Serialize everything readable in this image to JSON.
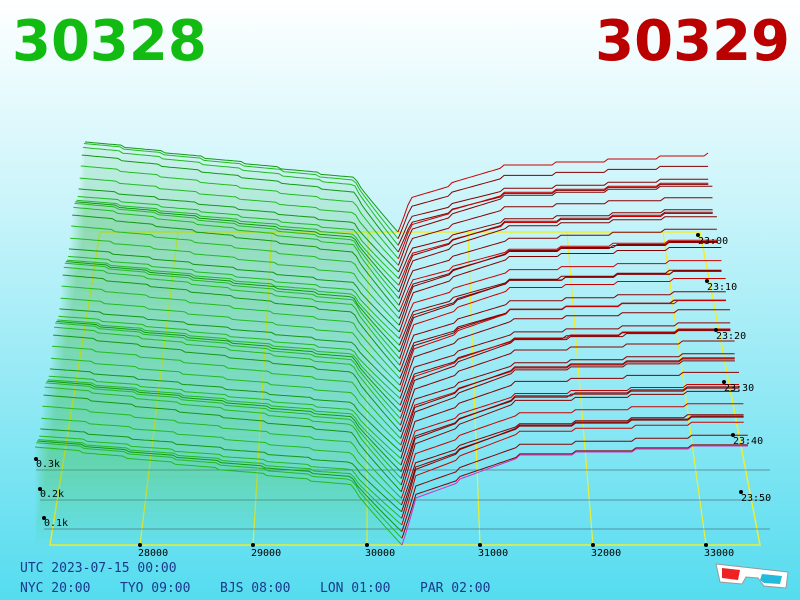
{
  "header": {
    "bid": "30328",
    "ask": "30329"
  },
  "price_axis": [
    "28000",
    "29000",
    "30000",
    "31000",
    "32000",
    "33000"
  ],
  "depth_axis": [
    "0.3k",
    "0.2k",
    "0.1k"
  ],
  "time_axis": [
    "23:00",
    "23:10",
    "23:20",
    "23:30",
    "23:40",
    "23:50"
  ],
  "footer": {
    "utc": "UTC 2023-07-15 00:00",
    "zones": [
      "NYC 20:00",
      "TYO 09:00",
      "BJS 08:00",
      "LON 01:00",
      "PAR 02:00"
    ]
  }
}
